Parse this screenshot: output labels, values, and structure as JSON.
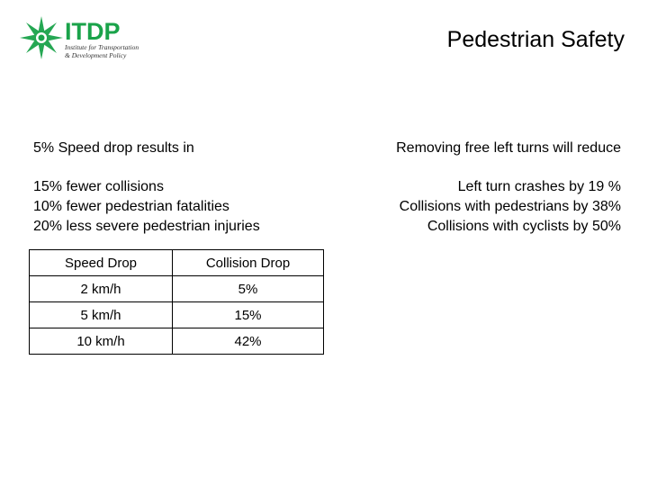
{
  "logo": {
    "wordmark": "ITDP",
    "tagline_line1": "Institute for Transportation",
    "tagline_line2": "& Development Policy",
    "color": "#1aa34a"
  },
  "title": "Pedestrian Safety",
  "left": {
    "heading": "5% Speed drop results in",
    "items": [
      "15% fewer collisions",
      "10% fewer pedestrian fatalities",
      "20% less severe pedestrian injuries"
    ]
  },
  "right": {
    "heading": "Removing free left turns will reduce",
    "items": [
      "Left turn crashes by 19 %",
      "Collisions with pedestrians by 38%",
      "Collisions with cyclists by 50%"
    ]
  },
  "table": {
    "headers": [
      "Speed Drop",
      "Collision Drop"
    ],
    "rows": [
      [
        "2 km/h",
        "5%"
      ],
      [
        "5 km/h",
        "15%"
      ],
      [
        "10 km/h",
        "42%"
      ]
    ]
  }
}
